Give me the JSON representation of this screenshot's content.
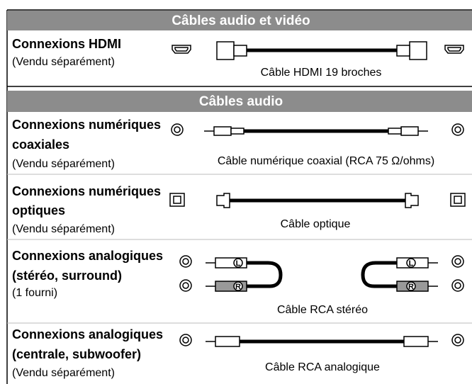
{
  "sections": [
    {
      "title": "Câbles audio et vidéo",
      "rows": [
        {
          "name_lines": [
            "Connexions HDMI"
          ],
          "note": "(Vendu séparément)",
          "cable": "Câble HDMI 19 broches"
        }
      ]
    },
    {
      "title": "Câbles audio",
      "rows": [
        {
          "name_lines": [
            "Connexions numériques",
            "coaxiales"
          ],
          "note": "(Vendu séparément)",
          "cable": "Câble numérique coaxial (RCA 75 Ω/ohms)"
        },
        {
          "name_lines": [
            "Connexions numériques",
            "optiques"
          ],
          "note": "(Vendu séparément)",
          "cable": "Câble optique"
        },
        {
          "name_lines": [
            "Connexions analogiques",
            "(stéréo, surround)"
          ],
          "note": "(1 fourni)",
          "cable": "Câble RCA stéréo"
        },
        {
          "name_lines": [
            "Connexions analogiques",
            "(centrale, subwoofer)"
          ],
          "note": "(Vendu séparément)",
          "cable": "Câble RCA analogique"
        }
      ]
    }
  ],
  "plug_labels": [
    "L",
    "R"
  ]
}
